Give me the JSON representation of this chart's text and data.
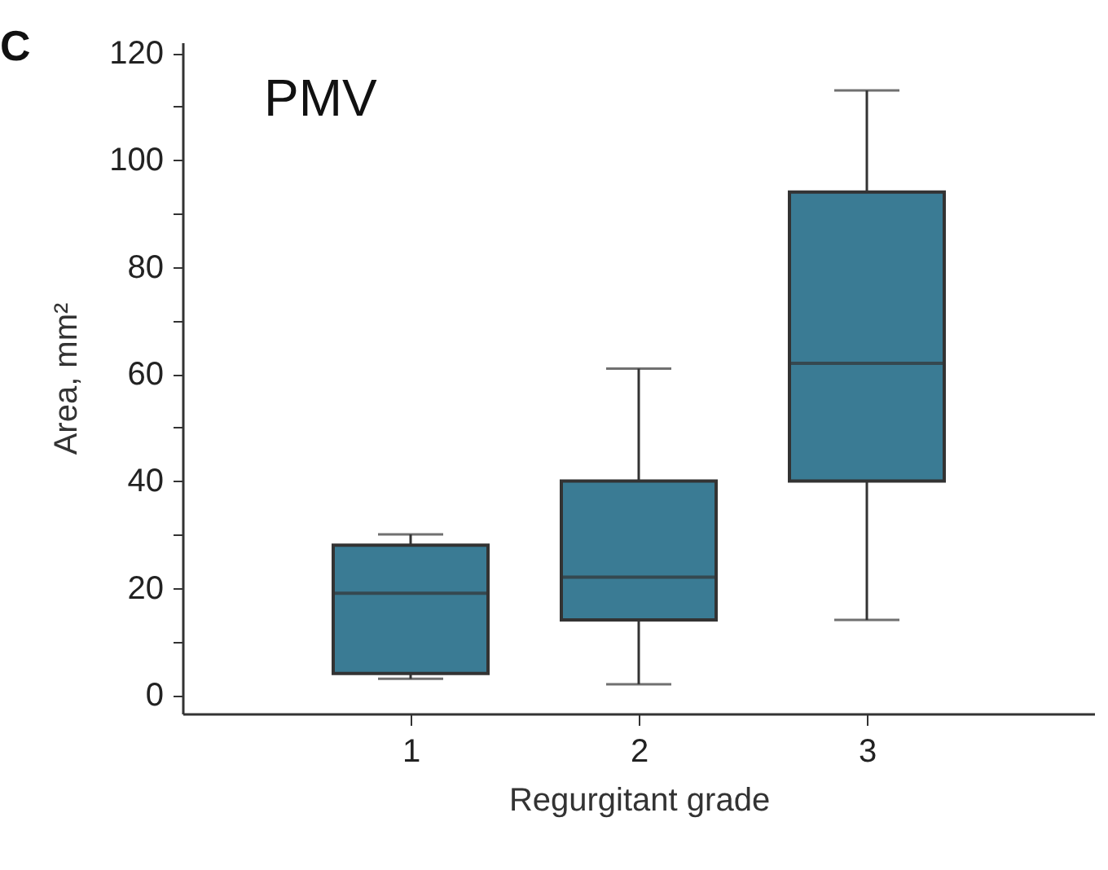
{
  "chart_data": {
    "type": "box",
    "xlabel": "Regurgitant grade",
    "ylabel": "Area, mm²",
    "annotations": [
      "C",
      "PMV"
    ],
    "categories": [
      "1",
      "2",
      "3"
    ],
    "color": "#3a7b94",
    "boxes": [
      {
        "low": 3,
        "q1": 4,
        "median": 19,
        "q3": 28,
        "high": 30
      },
      {
        "low": 2,
        "q1": 14,
        "median": 22,
        "q3": 40,
        "high": 61
      },
      {
        "low": 14,
        "q1": 40,
        "median": 62,
        "q3": 94,
        "high": 113
      }
    ],
    "ylim": [
      -3.5,
      122
    ],
    "yticks": [
      0,
      {
        "value": 10,
        "label": null
      },
      20,
      {
        "value": 30,
        "label": null
      },
      40,
      {
        "value": 50,
        "label": null
      },
      60,
      {
        "value": 70,
        "label": null
      },
      80,
      {
        "value": 90,
        "label": null
      },
      100,
      {
        "value": 110,
        "label": null
      },
      120
    ],
    "grid": false
  }
}
